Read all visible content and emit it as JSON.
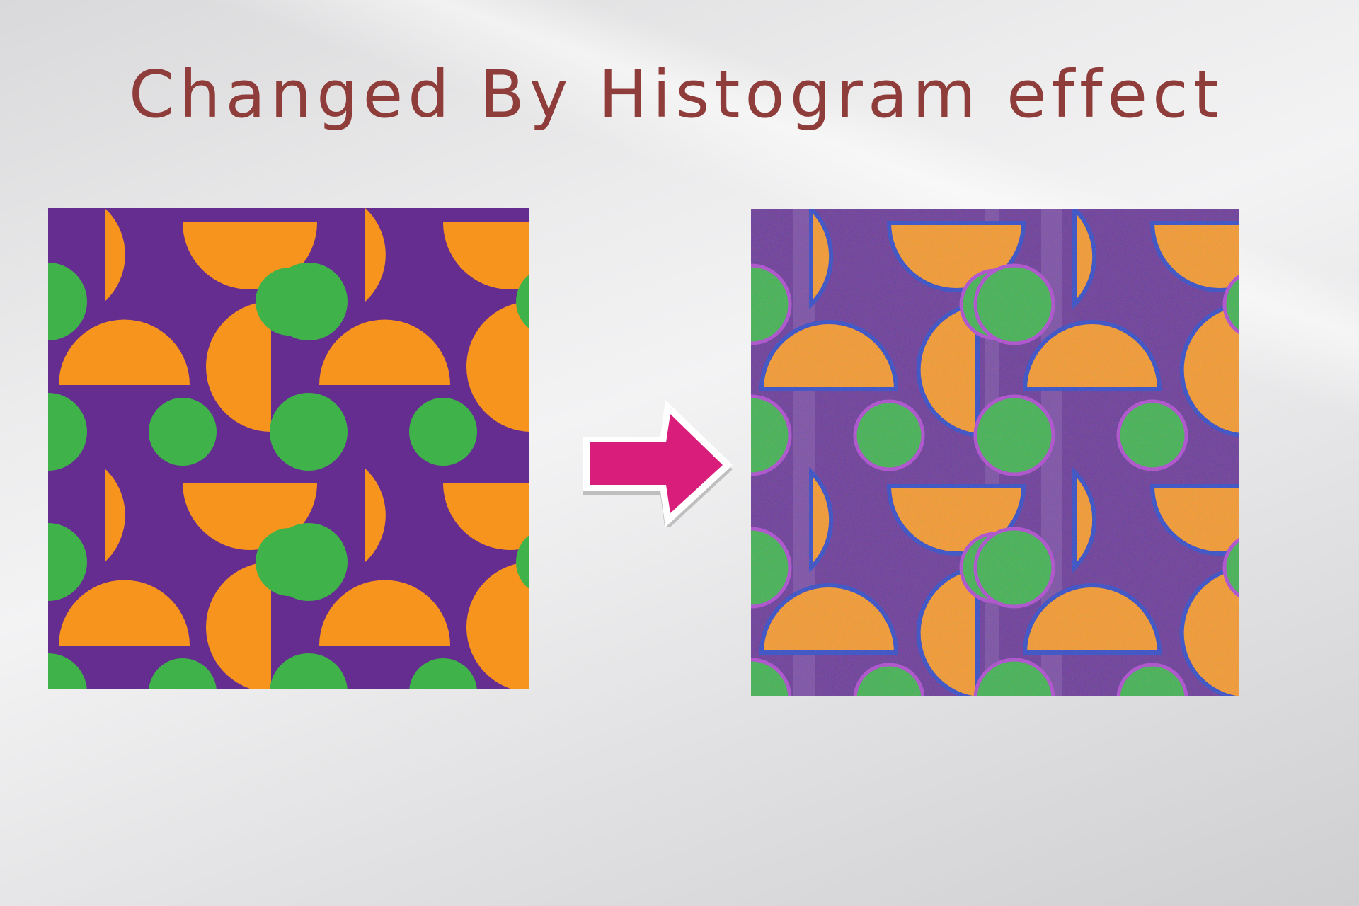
{
  "slide": {
    "title": "Changed By Histogram effect"
  },
  "images": {
    "original": {
      "description_icon": "geometric-pattern-original"
    },
    "processed": {
      "description_icon": "geometric-pattern-histogram-processed"
    }
  },
  "arrow": {
    "icon": "right-arrow-icon",
    "color": "#d81e7a"
  },
  "colors": {
    "purple": "#652d90",
    "orange": "#f7941d",
    "green": "#3fb24a",
    "title": "#8f3d3a"
  }
}
